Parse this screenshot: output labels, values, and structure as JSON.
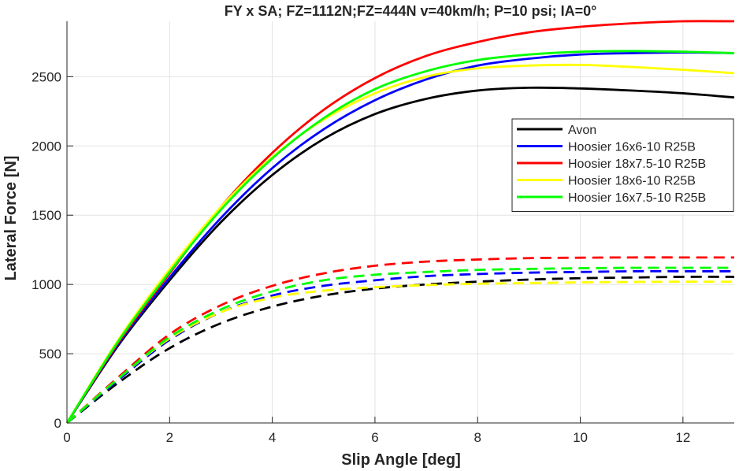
{
  "chart_data": {
    "type": "line",
    "title": "FY x SA; FZ=1112N;FZ=444N v=40km/h; P=10 psi; IA=0°",
    "xlabel": "Slip Angle [deg]",
    "ylabel": "Lateral Force [N]",
    "xlim": [
      0,
      13
    ],
    "ylim": [
      0,
      2900
    ],
    "xticks": [
      0,
      2,
      4,
      6,
      8,
      10,
      12
    ],
    "yticks": [
      0,
      500,
      1000,
      1500,
      2000,
      2500
    ],
    "grid": true,
    "legend_position": "right-middle",
    "x": [
      0,
      1,
      2,
      3,
      4,
      5,
      6,
      7,
      8,
      9,
      10,
      11,
      12,
      13
    ],
    "series": [
      {
        "name": "Avon",
        "color": "#000000",
        "style": "solid",
        "values": [
          0,
          560,
          1030,
          1450,
          1790,
          2050,
          2230,
          2340,
          2400,
          2420,
          2415,
          2400,
          2380,
          2350
        ]
      },
      {
        "name": "Hoosier 16x6-10 R25B",
        "color": "#0000ff",
        "style": "solid",
        "values": [
          0,
          570,
          1050,
          1480,
          1840,
          2120,
          2330,
          2480,
          2580,
          2630,
          2660,
          2670,
          2675,
          2670
        ]
      },
      {
        "name": "Hoosier 18x7.5-10 R25B",
        "color": "#ff0000",
        "style": "solid",
        "values": [
          0,
          580,
          1080,
          1560,
          1950,
          2260,
          2490,
          2650,
          2750,
          2820,
          2860,
          2885,
          2900,
          2900
        ]
      },
      {
        "name": "Hoosier 18x6-10 R25B",
        "color": "#ffff00",
        "style": "solid",
        "values": [
          0,
          600,
          1110,
          1560,
          1920,
          2190,
          2380,
          2500,
          2560,
          2580,
          2585,
          2570,
          2550,
          2525
        ]
      },
      {
        "name": "Hoosier 16x7.5-10 R25B",
        "color": "#00ff00",
        "style": "solid",
        "values": [
          0,
          590,
          1090,
          1540,
          1910,
          2200,
          2410,
          2540,
          2620,
          2660,
          2680,
          2685,
          2680,
          2670
        ]
      },
      {
        "name": "",
        "color": "#000000",
        "style": "dashed",
        "values": [
          0,
          290,
          540,
          720,
          840,
          920,
          970,
          1000,
          1020,
          1035,
          1045,
          1050,
          1055,
          1055
        ]
      },
      {
        "name": "",
        "color": "#0000ff",
        "style": "dashed",
        "values": [
          0,
          310,
          600,
          800,
          920,
          990,
          1030,
          1060,
          1075,
          1085,
          1090,
          1095,
          1095,
          1095
        ]
      },
      {
        "name": "",
        "color": "#ff0000",
        "style": "dashed",
        "values": [
          0,
          330,
          640,
          850,
          990,
          1080,
          1135,
          1165,
          1180,
          1190,
          1193,
          1195,
          1195,
          1195
        ]
      },
      {
        "name": "",
        "color": "#ffff00",
        "style": "dashed",
        "values": [
          0,
          320,
          610,
          800,
          905,
          955,
          980,
          995,
          1005,
          1010,
          1015,
          1018,
          1020,
          1020
        ]
      },
      {
        "name": "",
        "color": "#00ff00",
        "style": "dashed",
        "values": [
          0,
          320,
          620,
          820,
          950,
          1030,
          1070,
          1090,
          1105,
          1112,
          1117,
          1120,
          1120,
          1120
        ]
      }
    ]
  }
}
